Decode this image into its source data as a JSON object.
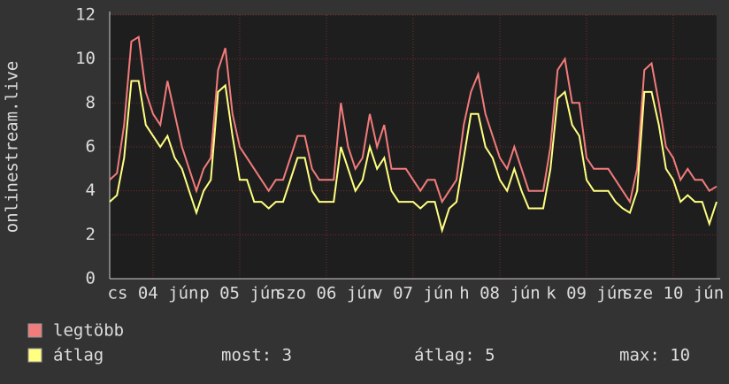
{
  "chart_data": {
    "type": "line",
    "y_label": "onlinestream.live",
    "x": [
      0,
      2,
      4,
      6,
      8,
      10,
      12,
      14,
      16,
      18,
      20,
      22,
      24,
      26,
      28,
      30,
      32,
      34,
      36,
      38,
      40,
      42,
      44,
      46,
      48,
      50,
      52,
      54,
      56,
      58,
      60,
      62,
      64,
      66,
      68,
      70,
      72,
      74,
      76,
      78,
      80,
      82,
      84,
      86,
      88,
      90,
      92,
      94,
      96,
      98,
      100,
      102,
      104,
      106,
      108,
      110,
      112,
      114,
      116,
      118,
      120,
      122,
      124,
      126,
      128,
      130,
      132,
      134,
      136,
      138,
      140,
      142,
      144,
      146,
      148,
      150,
      152,
      154,
      156,
      158,
      160,
      162,
      164,
      166,
      168
    ],
    "series": [
      {
        "name": "legtöbb",
        "color": "#f27b7b",
        "values": [
          4.5,
          4.8,
          7,
          10.8,
          11,
          8.5,
          7.5,
          7,
          9,
          7.5,
          6,
          5,
          4,
          5,
          5.5,
          9.5,
          10.5,
          7.5,
          6,
          5.5,
          5,
          4.5,
          4,
          4.5,
          4.5,
          5.5,
          6.5,
          6.5,
          5,
          4.5,
          4.5,
          4.5,
          8,
          6,
          5,
          5.5,
          7.5,
          6,
          7,
          5,
          5,
          5,
          4.5,
          4,
          4.5,
          4.5,
          3.5,
          4,
          4.5,
          7,
          8.5,
          9.3,
          7.5,
          6.5,
          5.5,
          5,
          6,
          5,
          4,
          4,
          4,
          6,
          9.5,
          10,
          8,
          8,
          5.5,
          5,
          5,
          5,
          4.5,
          4,
          3.5,
          5,
          9.5,
          9.8,
          8,
          6,
          5.5,
          4.5,
          5,
          4.5,
          4.5,
          4,
          4.2
        ]
      },
      {
        "name": "átlag",
        "color": "#ffff80",
        "values": [
          3.5,
          3.8,
          5.5,
          9,
          9,
          7,
          6.5,
          6,
          6.5,
          5.5,
          5,
          4,
          3,
          4,
          4.5,
          8.5,
          8.8,
          6.5,
          4.5,
          4.5,
          3.5,
          3.5,
          3.2,
          3.5,
          3.5,
          4.5,
          5.5,
          5.5,
          4,
          3.5,
          3.5,
          3.5,
          6,
          5,
          4,
          4.5,
          6,
          5,
          5.5,
          4,
          3.5,
          3.5,
          3.5,
          3.2,
          3.5,
          3.5,
          2.2,
          3.2,
          3.5,
          5.5,
          7.5,
          7.5,
          6,
          5.5,
          4.5,
          4,
          5,
          4,
          3.2,
          3.2,
          3.2,
          5,
          8.2,
          8.5,
          7,
          6.5,
          4.5,
          4,
          4,
          4,
          3.5,
          3.2,
          3,
          4,
          8.5,
          8.5,
          7,
          5,
          4.5,
          3.5,
          3.8,
          3.5,
          3.5,
          2.5,
          3.5
        ]
      }
    ],
    "xlim": [
      0,
      168
    ],
    "xticks": [
      {
        "value": 12,
        "label": "cs 04 jún"
      },
      {
        "value": 36,
        "label": "p 05 jún"
      },
      {
        "value": 60,
        "label": "szo 06 jún"
      },
      {
        "value": 84,
        "label": "v 07 jún"
      },
      {
        "value": 108,
        "label": "h 08 jún"
      },
      {
        "value": 132,
        "label": "k 09 jún"
      },
      {
        "value": 156,
        "label": "sze 10 jún"
      }
    ],
    "ylim": [
      0,
      12
    ],
    "yticks": [
      0,
      2,
      4,
      6,
      8,
      10,
      12
    ],
    "grid": true,
    "stats": [
      "most: 3",
      "átlag: 5",
      "max: 10"
    ]
  }
}
